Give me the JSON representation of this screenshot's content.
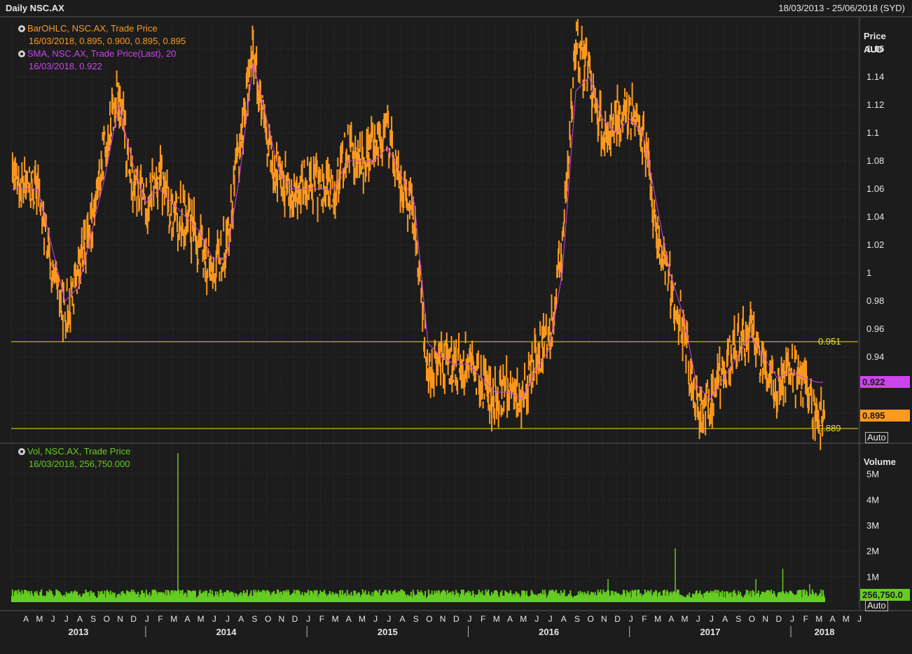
{
  "header": {
    "title": "Daily NSC.AX",
    "range": "18/03/2013 - 25/06/2018 (SYD)"
  },
  "legend": {
    "bar_name": "BarOHLC, NSC.AX, Trade Price",
    "bar_values": "16/03/2018, 0.895, 0.900, 0.895, 0.895",
    "sma_name": "SMA, NSC.AX, Trade Price(Last),  20",
    "sma_values": "16/03/2018, 0.922",
    "vol_name": "Vol, NSC.AX, Trade Price",
    "vol_values": "16/03/2018, 256,750.000"
  },
  "price_axis": {
    "title1": "Price",
    "title2": "AUD",
    "auto_label": "Auto"
  },
  "volume_axis": {
    "title": "Volume",
    "auto_label": "Auto"
  },
  "badges": {
    "sma": "0.922",
    "last": "0.895",
    "volume": "256,750.0"
  },
  "colors": {
    "background": "#1c1c1c",
    "price": "#ff9a1f",
    "sma": "#cc44ee",
    "volume": "#66cc22",
    "hline": "#f0e020",
    "grid": "#3a3a3a"
  },
  "chart_data": [
    {
      "type": "line",
      "title": "Daily NSC.AX",
      "ylabel": "Price AUD",
      "ylim": [
        0.88,
        1.18
      ],
      "y_ticks": [
        "1.16",
        "1.14",
        "1.12",
        "1.1",
        "1.08",
        "1.06",
        "1.04",
        "1.02",
        "1",
        "0.98",
        "0.96",
        "0.94",
        "0.9"
      ],
      "x_month_labels": [
        "A",
        "M",
        "J",
        "J",
        "A",
        "S",
        "O",
        "N",
        "D",
        "J",
        "F",
        "M",
        "A",
        "M",
        "J",
        "J",
        "A",
        "S",
        "O",
        "N",
        "D",
        "J",
        "F",
        "M",
        "A",
        "M",
        "J",
        "J",
        "A",
        "S",
        "O",
        "N",
        "D",
        "J",
        "F",
        "M",
        "A",
        "M",
        "J",
        "J",
        "A",
        "S",
        "O",
        "N",
        "D",
        "J",
        "F",
        "M",
        "A",
        "M",
        "J",
        "J",
        "A",
        "S",
        "O",
        "N",
        "D",
        "J",
        "F",
        "M",
        "A",
        "M",
        "J"
      ],
      "x_year_labels": [
        "2013",
        "2014",
        "2015",
        "2016",
        "2017",
        "2018"
      ],
      "horizontal_lines": [
        {
          "value": 0.951,
          "label": "0.951"
        },
        {
          "value": 0.889,
          "label": "0.889"
        }
      ],
      "series": [
        {
          "name": "BarOHLC, NSC.AX, Trade Price",
          "x": [
            "2013-03",
            "2013-05",
            "2013-06",
            "2013-07",
            "2013-08",
            "2013-09",
            "2013-10",
            "2013-11",
            "2013-12",
            "2014-01",
            "2014-02",
            "2014-03",
            "2014-04",
            "2014-05",
            "2014-06",
            "2014-07",
            "2014-08",
            "2014-09",
            "2014-10",
            "2014-11",
            "2014-12",
            "2015-01",
            "2015-02",
            "2015-03",
            "2015-04",
            "2015-05",
            "2015-06",
            "2015-07",
            "2015-08",
            "2015-09",
            "2015-10",
            "2015-11",
            "2015-12",
            "2016-01",
            "2016-02",
            "2016-03",
            "2016-04",
            "2016-05",
            "2016-06",
            "2016-07",
            "2016-08",
            "2016-09",
            "2016-10",
            "2016-11",
            "2016-12",
            "2017-01",
            "2017-02",
            "2017-03",
            "2017-04",
            "2017-05",
            "2017-06",
            "2017-07",
            "2017-08",
            "2017-09",
            "2017-10",
            "2017-11",
            "2017-12",
            "2018-01",
            "2018-02",
            "2018-03"
          ],
          "values": [
            1.065,
            1.06,
            1.0,
            0.97,
            1.0,
            1.04,
            1.09,
            1.13,
            1.06,
            1.05,
            1.07,
            1.04,
            1.04,
            1.02,
            1.0,
            1.02,
            1.09,
            1.16,
            1.09,
            1.07,
            1.05,
            1.07,
            1.06,
            1.06,
            1.09,
            1.08,
            1.09,
            1.1,
            1.06,
            1.04,
            0.93,
            0.94,
            0.93,
            0.94,
            0.92,
            0.91,
            0.92,
            0.91,
            0.94,
            0.95,
            1.02,
            1.16,
            1.14,
            1.1,
            1.11,
            1.12,
            1.1,
            1.03,
            0.99,
            0.96,
            0.9,
            0.91,
            0.93,
            0.95,
            0.96,
            0.93,
            0.92,
            0.93,
            0.92,
            0.895
          ]
        },
        {
          "name": "SMA, NSC.AX, Trade Price(Last),  20",
          "x": [
            "2013-03",
            "2013-05",
            "2013-06",
            "2013-07",
            "2013-08",
            "2013-09",
            "2013-10",
            "2013-11",
            "2013-12",
            "2014-01",
            "2014-02",
            "2014-03",
            "2014-04",
            "2014-05",
            "2014-06",
            "2014-07",
            "2014-08",
            "2014-09",
            "2014-10",
            "2014-11",
            "2014-12",
            "2015-01",
            "2015-02",
            "2015-03",
            "2015-04",
            "2015-05",
            "2015-06",
            "2015-07",
            "2015-08",
            "2015-09",
            "2015-10",
            "2015-11",
            "2015-12",
            "2016-01",
            "2016-02",
            "2016-03",
            "2016-04",
            "2016-05",
            "2016-06",
            "2016-07",
            "2016-08",
            "2016-09",
            "2016-10",
            "2016-11",
            "2016-12",
            "2017-01",
            "2017-02",
            "2017-03",
            "2017-04",
            "2017-05",
            "2017-06",
            "2017-07",
            "2017-08",
            "2017-09",
            "2017-10",
            "2017-11",
            "2017-12",
            "2018-01",
            "2018-02",
            "2018-03"
          ],
          "values": [
            1.06,
            1.06,
            1.02,
            0.98,
            0.99,
            1.03,
            1.07,
            1.12,
            1.08,
            1.05,
            1.06,
            1.05,
            1.04,
            1.03,
            1.01,
            1.01,
            1.07,
            1.15,
            1.11,
            1.07,
            1.06,
            1.06,
            1.06,
            1.06,
            1.08,
            1.08,
            1.08,
            1.09,
            1.07,
            1.05,
            0.95,
            0.94,
            0.935,
            0.935,
            0.925,
            0.915,
            0.915,
            0.91,
            0.93,
            0.945,
            1.0,
            1.13,
            1.14,
            1.11,
            1.1,
            1.11,
            1.1,
            1.05,
            1.0,
            0.97,
            0.92,
            0.91,
            0.925,
            0.94,
            0.955,
            0.94,
            0.925,
            0.93,
            0.925,
            0.922
          ]
        }
      ]
    },
    {
      "type": "bar",
      "title": "Vol, NSC.AX, Trade Price",
      "ylabel": "Volume",
      "ylim": [
        0,
        6000000
      ],
      "y_ticks": [
        "5M",
        "4M",
        "3M",
        "2M",
        "1M"
      ],
      "series": [
        {
          "name": "Vol, NSC.AX, Trade Price",
          "x": [
            "2014-03",
            "2016-11",
            "2017-04",
            "2017-10",
            "2017-12",
            "2018-02",
            "2018-03"
          ],
          "values": [
            5800000,
            900000,
            2100000,
            900000,
            1300000,
            700000,
            256750
          ]
        }
      ]
    }
  ]
}
